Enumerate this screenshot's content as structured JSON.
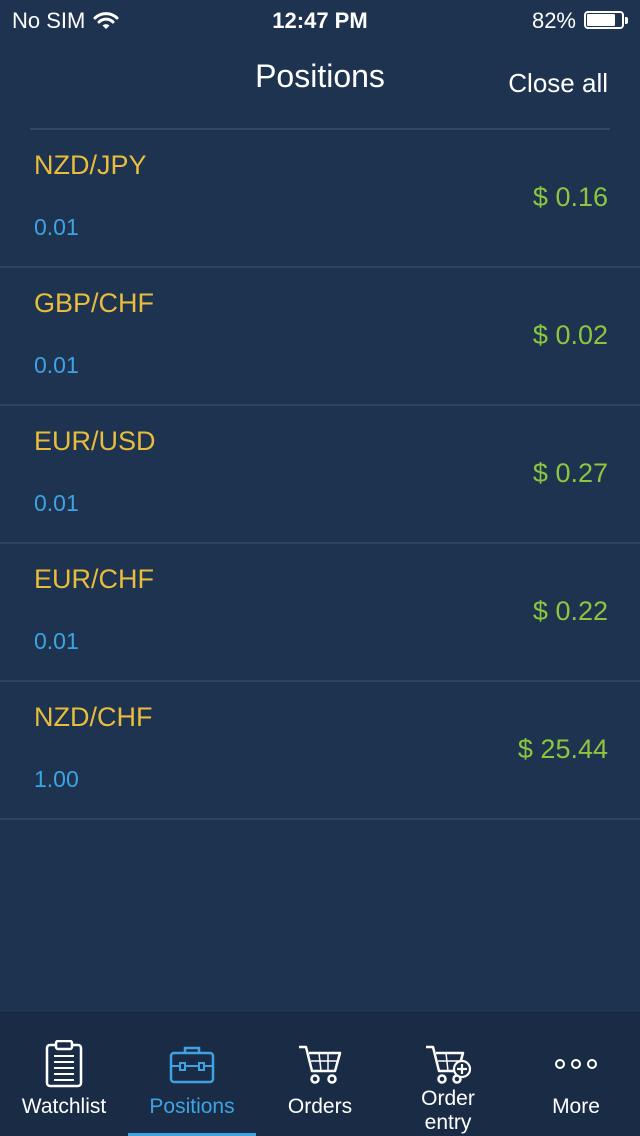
{
  "status_bar": {
    "carrier": "No SIM",
    "time": "12:47 PM",
    "battery": "82%",
    "battery_level": 0.82
  },
  "nav": {
    "title": "Positions",
    "close_all_label": "Close all"
  },
  "positions": [
    {
      "pair": "NZD/JPY",
      "lots": "0.01",
      "pnl": "$ 0.16"
    },
    {
      "pair": "GBP/CHF",
      "lots": "0.01",
      "pnl": "$ 0.02"
    },
    {
      "pair": "EUR/USD",
      "lots": "0.01",
      "pnl": "$ 0.27"
    },
    {
      "pair": "EUR/CHF",
      "lots": "0.01",
      "pnl": "$ 0.22"
    },
    {
      "pair": "NZD/CHF",
      "lots": "1.00",
      "pnl": "$ 25.44"
    }
  ],
  "tabs": [
    {
      "label": "Watchlist",
      "icon": "clipboard-icon",
      "active": false
    },
    {
      "label": "Positions",
      "icon": "briefcase-icon",
      "active": true
    },
    {
      "label": "Orders",
      "icon": "cart-icon",
      "active": false
    },
    {
      "label_line1": "Order",
      "label_line2": "entry",
      "icon": "cart-add-icon",
      "active": false
    },
    {
      "label": "More",
      "icon": "more-dots-icon",
      "active": false
    }
  ],
  "colors": {
    "background": "#1e3350",
    "pair": "#e8bd3c",
    "lots": "#3ea3e3",
    "pnl": "#8cc63f",
    "active_tab": "#3ea3e3"
  }
}
